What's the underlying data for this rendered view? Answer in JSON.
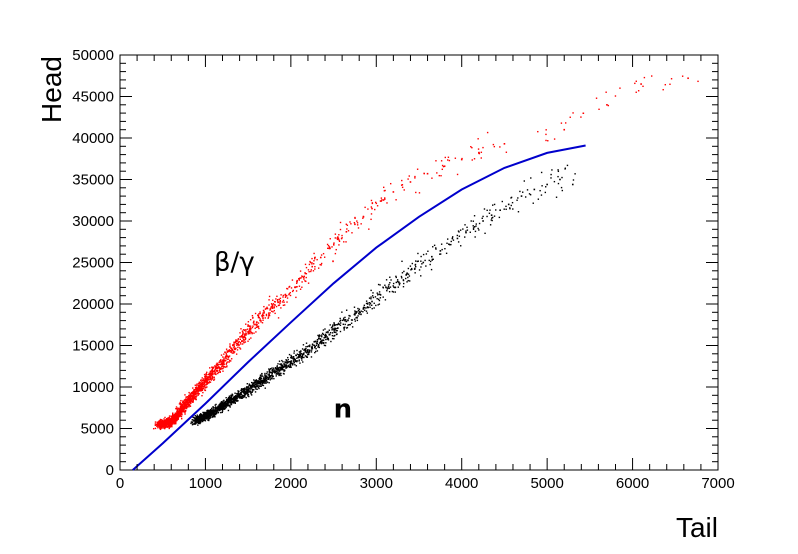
{
  "chart_data": {
    "type": "scatter",
    "title": "",
    "xlabel": "Tail",
    "ylabel": "Head",
    "xlim": [
      0,
      7000
    ],
    "ylim": [
      0,
      50000
    ],
    "x_ticks": [
      "0",
      "1000",
      "2000",
      "3000",
      "4000",
      "5000",
      "6000",
      "7000"
    ],
    "y_ticks": [
      "0",
      "5000",
      "10000",
      "15000",
      "20000",
      "25000",
      "30000",
      "35000",
      "40000",
      "45000",
      "50000"
    ],
    "grid": false,
    "legend": "none",
    "annotations": [
      {
        "text": "β/γ",
        "x": 1100,
        "y": 25000
      },
      {
        "text": "n",
        "x": 2500,
        "y": 7300
      }
    ],
    "series": [
      {
        "color": "#ff0000",
        "kind": "scatter",
        "points": [
          [
            450,
            5500
          ],
          [
            520,
            5600
          ],
          [
            600,
            5800
          ],
          [
            650,
            6300
          ],
          [
            700,
            7000
          ],
          [
            760,
            7800
          ],
          [
            820,
            8500
          ],
          [
            880,
            9300
          ],
          [
            950,
            10000
          ],
          [
            1000,
            10800
          ],
          [
            1080,
            11500
          ],
          [
            1150,
            12300
          ],
          [
            1220,
            13200
          ],
          [
            1300,
            14200
          ],
          [
            1380,
            15200
          ],
          [
            1450,
            16000
          ],
          [
            1520,
            17000
          ],
          [
            1600,
            17800
          ],
          [
            1680,
            18600
          ],
          [
            1760,
            19400
          ],
          [
            1850,
            20200
          ],
          [
            1950,
            21000
          ],
          [
            2050,
            22000
          ],
          [
            2150,
            23200
          ],
          [
            2250,
            24500
          ],
          [
            2350,
            25600
          ],
          [
            2450,
            26700
          ],
          [
            2550,
            27800
          ],
          [
            2650,
            28700
          ],
          [
            2750,
            29600
          ],
          [
            2850,
            30500
          ],
          [
            2950,
            31500
          ],
          [
            3050,
            32400
          ],
          [
            3200,
            33500
          ],
          [
            3400,
            34700
          ],
          [
            3600,
            35700
          ],
          [
            3800,
            36600
          ],
          [
            4000,
            37400
          ],
          [
            4200,
            38200
          ],
          [
            4500,
            39300
          ],
          [
            5200,
            41000
          ],
          [
            5700,
            44000
          ],
          [
            6100,
            46500
          ],
          [
            6650,
            47200
          ]
        ]
      },
      {
        "color": "#000000",
        "kind": "scatter",
        "points": [
          [
            880,
            5900
          ],
          [
            950,
            6200
          ],
          [
            1050,
            6700
          ],
          [
            1150,
            7300
          ],
          [
            1250,
            8000
          ],
          [
            1350,
            8700
          ],
          [
            1450,
            9300
          ],
          [
            1550,
            10000
          ],
          [
            1650,
            10700
          ],
          [
            1750,
            11300
          ],
          [
            1850,
            12000
          ],
          [
            1950,
            12600
          ],
          [
            2050,
            13300
          ],
          [
            2150,
            14000
          ],
          [
            2250,
            14700
          ],
          [
            2350,
            15500
          ],
          [
            2450,
            16300
          ],
          [
            2550,
            17100
          ],
          [
            2650,
            17900
          ],
          [
            2750,
            18700
          ],
          [
            2850,
            19500
          ],
          [
            2950,
            20300
          ],
          [
            3050,
            21100
          ],
          [
            3150,
            21900
          ],
          [
            3250,
            22700
          ],
          [
            3350,
            23500
          ],
          [
            3450,
            24200
          ],
          [
            3550,
            25000
          ],
          [
            3650,
            25700
          ],
          [
            3750,
            26400
          ],
          [
            3850,
            27200
          ],
          [
            3950,
            27900
          ],
          [
            4050,
            28600
          ],
          [
            4150,
            29300
          ],
          [
            4250,
            30000
          ],
          [
            4350,
            30700
          ],
          [
            4450,
            31300
          ],
          [
            4550,
            32000
          ],
          [
            4700,
            33000
          ],
          [
            4850,
            33800
          ],
          [
            5000,
            34400
          ],
          [
            5150,
            35000
          ],
          [
            5300,
            34400
          ]
        ]
      },
      {
        "color": "#0000cc",
        "kind": "line",
        "points": [
          [
            150,
            0
          ],
          [
            500,
            3200
          ],
          [
            1000,
            8000
          ],
          [
            1500,
            13000
          ],
          [
            2000,
            17800
          ],
          [
            2500,
            22500
          ],
          [
            3000,
            26800
          ],
          [
            3500,
            30500
          ],
          [
            4000,
            33800
          ],
          [
            4500,
            36400
          ],
          [
            5000,
            38200
          ],
          [
            5450,
            39100
          ]
        ]
      }
    ]
  }
}
